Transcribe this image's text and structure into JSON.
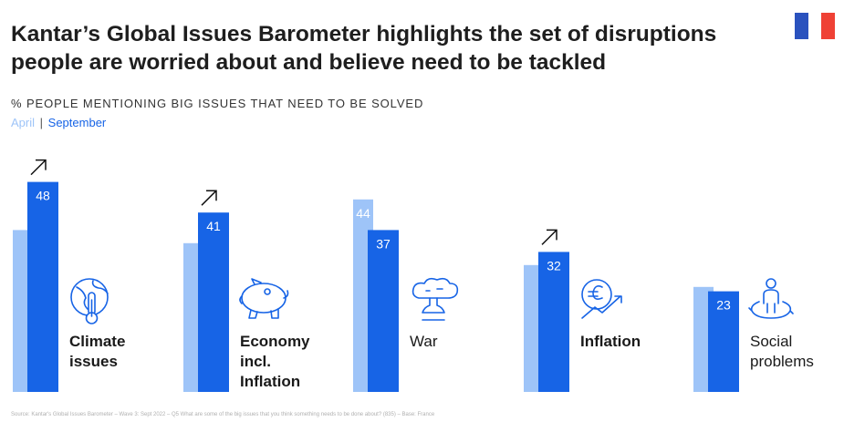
{
  "title": "Kantar’s Global Issues Barometer highlights the set of disruptions people are worried about and believe need to be tackled",
  "subtitle": "% PEOPLE MENTIONING BIG ISSUES THAT NEED TO BE SOLVED",
  "legend": {
    "april": "April",
    "separator": "|",
    "september": "September"
  },
  "colors": {
    "april": "#9ec4f8",
    "september": "#1764e6",
    "flag_blue": "#2a52be",
    "flag_white": "#ffffff",
    "flag_red": "#ef4135"
  },
  "source": "Source: Kantar's Global Issues Barometer – Wave 3: Sept 2022 – Q5 What are some of the big issues that you think something needs to be done about? (835) – Base: France",
  "chart_data": {
    "type": "bar",
    "categories": [
      "Climate issues",
      "Economy incl. Inflation",
      "War",
      "Inflation",
      "Social problems"
    ],
    "series": [
      {
        "name": "April",
        "values": [
          37,
          34,
          44,
          29,
          24
        ]
      },
      {
        "name": "September",
        "values": [
          48,
          41,
          37,
          32,
          23
        ]
      }
    ],
    "data_labels": [
      {
        "april": "",
        "september": "48"
      },
      {
        "april": "",
        "september": "41"
      },
      {
        "april": "44",
        "september": "37"
      },
      {
        "april": "",
        "september": "32"
      },
      {
        "april": "",
        "september": "23"
      }
    ],
    "trend_up": [
      true,
      true,
      false,
      true,
      false
    ],
    "icons": [
      "globe-thermometer-icon",
      "piggy-bank-icon",
      "explosion-cloud-icon",
      "euro-growth-icon",
      "people-circle-icon"
    ],
    "label_bold": [
      true,
      true,
      false,
      true,
      false
    ],
    "label_lines": [
      [
        "Climate",
        "issues"
      ],
      [
        "Economy",
        "incl.",
        "Inflation"
      ],
      [
        "War"
      ],
      [
        "Inflation"
      ],
      [
        "Social",
        "problems"
      ]
    ],
    "ylim": [
      0,
      60
    ]
  }
}
